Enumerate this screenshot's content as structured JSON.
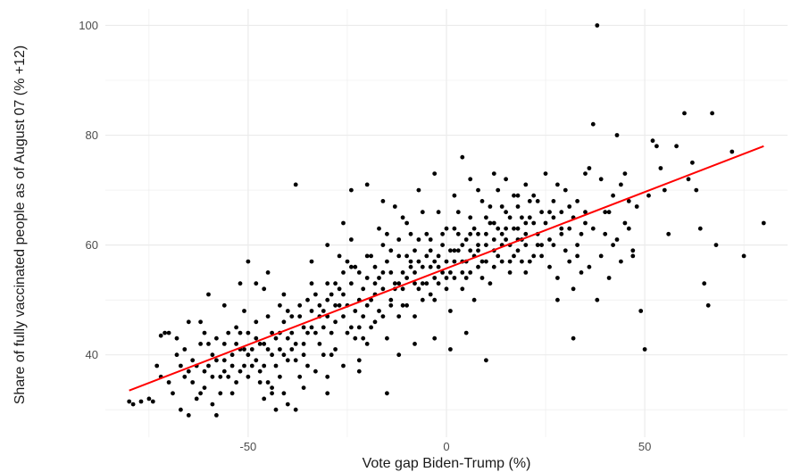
{
  "chart_data": {
    "type": "scatter",
    "title": "",
    "xlabel": "Vote gap Biden-Trump (%)",
    "ylabel": "Share of fully vaccinated people as of August 07 (% +12)",
    "xlim": [
      -86,
      86
    ],
    "ylim": [
      25,
      103
    ],
    "x_ticks": [
      -50,
      0,
      50
    ],
    "x_tick_labels": [
      "-50",
      "0",
      "50"
    ],
    "y_ticks": [
      40,
      60,
      80,
      100
    ],
    "y_tick_labels": [
      "40",
      "60",
      "80",
      "100"
    ],
    "grid": true,
    "legend": "none",
    "colors": {
      "points": "#000000",
      "trend": "#ff0000",
      "grid": "#ebebeb"
    },
    "trend_line": {
      "x": [
        -80,
        80
      ],
      "y": [
        33.5,
        78
      ]
    },
    "points": [
      [
        -80,
        31.5
      ],
      [
        -77,
        31.5
      ],
      [
        -74,
        31.5
      ],
      [
        -72,
        43.5
      ],
      [
        -71,
        44
      ],
      [
        -70,
        44
      ],
      [
        -68,
        43
      ],
      [
        -69,
        33
      ],
      [
        -66,
        36
      ],
      [
        -67,
        30
      ],
      [
        -64,
        35
      ],
      [
        -65,
        37
      ],
      [
        -63,
        38
      ],
      [
        -62,
        42
      ],
      [
        -61,
        44
      ],
      [
        -60,
        42
      ],
      [
        -59,
        40
      ],
      [
        -61,
        34
      ],
      [
        -59,
        31
      ],
      [
        -58,
        29
      ],
      [
        -57,
        33
      ],
      [
        -56,
        37
      ],
      [
        -55,
        36
      ],
      [
        -54,
        40
      ],
      [
        -53,
        42
      ],
      [
        -52,
        44
      ],
      [
        -51,
        38
      ],
      [
        -50,
        36
      ],
      [
        -50,
        40
      ],
      [
        -49,
        41
      ],
      [
        -48,
        39
      ],
      [
        -47,
        37
      ],
      [
        -46,
        42
      ],
      [
        -45,
        35
      ],
      [
        -44,
        34
      ],
      [
        -43,
        38
      ],
      [
        -42,
        44
      ],
      [
        -41,
        46
      ],
      [
        -40,
        43
      ],
      [
        -39,
        41
      ],
      [
        -38,
        39
      ],
      [
        -37,
        36
      ],
      [
        -36,
        45
      ],
      [
        -35,
        50
      ],
      [
        -34,
        48
      ],
      [
        -33,
        44
      ],
      [
        -32,
        42
      ],
      [
        -31,
        40
      ],
      [
        -30,
        47
      ],
      [
        -29,
        51
      ],
      [
        -28,
        53
      ],
      [
        -27,
        49
      ],
      [
        -26,
        55
      ],
      [
        -25,
        57
      ],
      [
        -24,
        45
      ],
      [
        -23,
        43
      ],
      [
        -22,
        50
      ],
      [
        -21,
        52
      ],
      [
        -20,
        54
      ],
      [
        -19,
        58
      ],
      [
        -18,
        56
      ],
      [
        -17,
        48
      ],
      [
        -16,
        60
      ],
      [
        -15,
        62
      ],
      [
        -14,
        59
      ],
      [
        -13,
        52
      ],
      [
        -12,
        47
      ],
      [
        -11,
        55
      ],
      [
        -10,
        64
      ],
      [
        -9,
        57
      ],
      [
        -8,
        53
      ],
      [
        -7,
        61
      ],
      [
        -6,
        50
      ],
      [
        -5,
        58
      ],
      [
        -4,
        56
      ],
      [
        -3,
        54
      ],
      [
        -2,
        66
      ],
      [
        -1,
        60
      ],
      [
        0,
        57
      ],
      [
        1,
        55
      ],
      [
        2,
        63
      ],
      [
        3,
        59
      ],
      [
        4,
        52
      ],
      [
        5,
        61
      ],
      [
        6,
        65
      ],
      [
        7,
        58
      ],
      [
        8,
        56
      ],
      [
        9,
        68
      ],
      [
        10,
        62
      ],
      [
        11,
        64
      ],
      [
        12,
        59
      ],
      [
        13,
        70
      ],
      [
        14,
        60
      ],
      [
        15,
        66
      ],
      [
        16,
        57
      ],
      [
        17,
        63
      ],
      [
        18,
        67
      ],
      [
        19,
        61
      ],
      [
        20,
        55
      ],
      [
        21,
        65
      ],
      [
        22,
        69
      ],
      [
        23,
        62
      ],
      [
        24,
        58
      ],
      [
        25,
        64
      ],
      [
        26,
        66
      ],
      [
        27,
        60
      ],
      [
        28,
        71
      ],
      [
        29,
        63
      ],
      [
        30,
        59
      ],
      [
        31,
        67
      ],
      [
        32,
        52
      ],
      [
        33,
        68
      ],
      [
        34,
        62
      ],
      [
        35,
        66
      ],
      [
        36,
        74
      ],
      [
        37,
        82
      ],
      [
        38,
        100
      ],
      [
        39,
        72
      ],
      [
        40,
        62
      ],
      [
        41,
        66
      ],
      [
        42,
        69
      ],
      [
        43,
        80
      ],
      [
        44,
        71
      ],
      [
        45,
        64
      ],
      [
        46,
        68
      ],
      [
        47,
        58
      ],
      [
        48,
        67
      ],
      [
        49,
        48
      ],
      [
        50,
        41
      ],
      [
        51,
        69
      ],
      [
        52,
        79
      ],
      [
        53,
        78
      ],
      [
        54,
        74
      ],
      [
        55,
        70
      ],
      [
        56,
        62
      ],
      [
        58,
        78
      ],
      [
        60,
        84
      ],
      [
        61,
        72
      ],
      [
        62,
        75
      ],
      [
        63,
        70
      ],
      [
        64,
        63
      ],
      [
        65,
        53
      ],
      [
        66,
        49
      ],
      [
        67,
        84
      ],
      [
        68,
        60
      ],
      [
        72,
        77
      ],
      [
        75,
        58
      ],
      [
        80,
        64
      ],
      [
        -79,
        31
      ],
      [
        -75,
        32
      ],
      [
        -73,
        38
      ],
      [
        -70,
        35
      ],
      [
        -68,
        40
      ],
      [
        -66,
        41
      ],
      [
        -65,
        29
      ],
      [
        -63,
        32
      ],
      [
        -62,
        46
      ],
      [
        -60,
        38
      ],
      [
        -58,
        43
      ],
      [
        -57,
        36
      ],
      [
        -55,
        44
      ],
      [
        -54,
        33
      ],
      [
        -52,
        37
      ],
      [
        -51,
        48
      ],
      [
        -50,
        57
      ],
      [
        -48,
        43
      ],
      [
        -47,
        35
      ],
      [
        -46,
        32
      ],
      [
        -45,
        47
      ],
      [
        -44,
        40
      ],
      [
        -43,
        30
      ],
      [
        -42,
        36
      ],
      [
        -41,
        51
      ],
      [
        -40,
        48
      ],
      [
        -39,
        44
      ],
      [
        -38,
        30
      ],
      [
        -37,
        47
      ],
      [
        -36,
        42
      ],
      [
        -35,
        38
      ],
      [
        -34,
        53
      ],
      [
        -33,
        37
      ],
      [
        -32,
        49
      ],
      [
        -31,
        45
      ],
      [
        -30,
        36
      ],
      [
        -29,
        44
      ],
      [
        -28,
        41
      ],
      [
        -27,
        58
      ],
      [
        -26,
        47
      ],
      [
        -25,
        44
      ],
      [
        -24,
        61
      ],
      [
        -23,
        56
      ],
      [
        -22,
        39
      ],
      [
        -21,
        47
      ],
      [
        -20,
        42
      ],
      [
        -19,
        50
      ],
      [
        -18,
        46
      ],
      [
        -17,
        63
      ],
      [
        -16,
        52
      ],
      [
        -15,
        43
      ],
      [
        -14,
        55
      ],
      [
        -13,
        67
      ],
      [
        -12,
        58
      ],
      [
        -11,
        49
      ],
      [
        -10,
        54
      ],
      [
        -9,
        62
      ],
      [
        -8,
        47
      ],
      [
        -7,
        57
      ],
      [
        -6,
        66
      ],
      [
        -5,
        53
      ],
      [
        -4,
        61
      ],
      [
        -3,
        50
      ],
      [
        -2,
        58
      ],
      [
        -1,
        55
      ],
      [
        0,
        63
      ],
      [
        1,
        48
      ],
      [
        2,
        59
      ],
      [
        3,
        66
      ],
      [
        4,
        57
      ],
      [
        5,
        54
      ],
      [
        6,
        62
      ],
      [
        7,
        50
      ],
      [
        8,
        60
      ],
      [
        9,
        57
      ],
      [
        10,
        65
      ],
      [
        11,
        53
      ],
      [
        12,
        61
      ],
      [
        13,
        58
      ],
      [
        14,
        67
      ],
      [
        15,
        63
      ],
      [
        16,
        55
      ],
      [
        17,
        69
      ],
      [
        18,
        59
      ],
      [
        19,
        65
      ],
      [
        20,
        62
      ],
      [
        21,
        57
      ],
      [
        22,
        64
      ],
      [
        23,
        68
      ],
      [
        24,
        60
      ],
      [
        25,
        73
      ],
      [
        26,
        56
      ],
      [
        27,
        65
      ],
      [
        28,
        54
      ],
      [
        29,
        62
      ],
      [
        30,
        70
      ],
      [
        31,
        57
      ],
      [
        32,
        65
      ],
      [
        33,
        60
      ],
      [
        34,
        55
      ],
      [
        35,
        73
      ],
      [
        36,
        56
      ],
      [
        37,
        63
      ],
      [
        38,
        50
      ],
      [
        39,
        58
      ],
      [
        40,
        66
      ],
      [
        41,
        54
      ],
      [
        42,
        60
      ],
      [
        43,
        61
      ],
      [
        44,
        57
      ],
      [
        45,
        73
      ],
      [
        46,
        63
      ],
      [
        47,
        59
      ],
      [
        -62,
        33
      ],
      [
        -59,
        36
      ],
      [
        -56,
        39
      ],
      [
        -53,
        35
      ],
      [
        -51,
        41
      ],
      [
        -49,
        38
      ],
      [
        -47,
        42
      ],
      [
        -46,
        38
      ],
      [
        -44,
        44
      ],
      [
        -42,
        41
      ],
      [
        -41,
        33
      ],
      [
        -40,
        39
      ],
      [
        -38,
        42
      ],
      [
        -37,
        49
      ],
      [
        -35,
        44
      ],
      [
        -33,
        51
      ],
      [
        -31,
        48
      ],
      [
        -30,
        53
      ],
      [
        -29,
        40
      ],
      [
        -28,
        46
      ],
      [
        -27,
        52
      ],
      [
        -25,
        49
      ],
      [
        -24,
        53
      ],
      [
        -23,
        48
      ],
      [
        -22,
        55
      ],
      [
        -21,
        43
      ],
      [
        -20,
        58
      ],
      [
        -19,
        45
      ],
      [
        -18,
        51
      ],
      [
        -17,
        54
      ],
      [
        -16,
        47
      ],
      [
        -15,
        57
      ],
      [
        -14,
        50
      ],
      [
        -13,
        53
      ],
      [
        -12,
        61
      ],
      [
        -11,
        52
      ],
      [
        -10,
        49
      ],
      [
        -9,
        56
      ],
      [
        -8,
        59
      ],
      [
        -7,
        52
      ],
      [
        -6,
        56
      ],
      [
        -5,
        62
      ],
      [
        -4,
        51
      ],
      [
        -3,
        57
      ],
      [
        -2,
        53
      ],
      [
        -1,
        62
      ],
      [
        0,
        52
      ],
      [
        1,
        59
      ],
      [
        2,
        54
      ],
      [
        3,
        62
      ],
      [
        4,
        60
      ],
      [
        5,
        57
      ],
      [
        6,
        55
      ],
      [
        7,
        63
      ],
      [
        8,
        59
      ],
      [
        9,
        54
      ],
      [
        10,
        60
      ],
      [
        11,
        67
      ],
      [
        12,
        56
      ],
      [
        13,
        63
      ],
      [
        14,
        57
      ],
      [
        15,
        61
      ],
      [
        16,
        65
      ],
      [
        17,
        58
      ],
      [
        18,
        63
      ],
      [
        19,
        57
      ],
      [
        20,
        60
      ],
      [
        21,
        68
      ],
      [
        22,
        58
      ],
      [
        23,
        60
      ],
      [
        24,
        66
      ],
      [
        26,
        61
      ],
      [
        27,
        68
      ],
      [
        29,
        66
      ],
      [
        31,
        63
      ],
      [
        33,
        58
      ],
      [
        35,
        64
      ],
      [
        -72,
        36
      ],
      [
        -67,
        38
      ],
      [
        -64,
        39
      ],
      [
        -61,
        37
      ],
      [
        -58,
        39
      ],
      [
        -56,
        42
      ],
      [
        -54,
        38
      ],
      [
        -52,
        41
      ],
      [
        -50,
        44
      ],
      [
        -48,
        46
      ],
      [
        -45,
        41
      ],
      [
        -43,
        43
      ],
      [
        -41,
        40
      ],
      [
        -39,
        47
      ],
      [
        -36,
        40
      ],
      [
        -34,
        45
      ],
      [
        -32,
        47
      ],
      [
        -30,
        50
      ],
      [
        -28,
        49
      ],
      [
        -26,
        51
      ],
      [
        -24,
        56
      ],
      [
        -22,
        45
      ],
      [
        -20,
        49
      ],
      [
        -18,
        53
      ],
      [
        -16,
        55
      ],
      [
        -14,
        49
      ],
      [
        -12,
        53
      ],
      [
        -10,
        58
      ],
      [
        -8,
        55
      ],
      [
        -6,
        53
      ],
      [
        -4,
        59
      ],
      [
        -2,
        56
      ],
      [
        0,
        54
      ],
      [
        2,
        57
      ],
      [
        4,
        55
      ],
      [
        6,
        59
      ],
      [
        8,
        62
      ],
      [
        10,
        57
      ],
      [
        12,
        64
      ],
      [
        14,
        62
      ],
      [
        16,
        60
      ],
      [
        18,
        61
      ],
      [
        20,
        64
      ],
      [
        -44,
        33
      ],
      [
        -40,
        31
      ],
      [
        -36,
        34
      ],
      [
        -30,
        33
      ],
      [
        -26,
        38
      ],
      [
        -22,
        37
      ],
      [
        -15,
        33
      ],
      [
        -12,
        40
      ],
      [
        -8,
        42
      ],
      [
        -3,
        43
      ],
      [
        1,
        41
      ],
      [
        5,
        44
      ],
      [
        10,
        39
      ],
      [
        28,
        50
      ],
      [
        32,
        43
      ],
      [
        -20,
        71
      ],
      [
        -16,
        68
      ],
      [
        -11,
        65
      ],
      [
        -7,
        70
      ],
      [
        -3,
        73
      ],
      [
        2,
        69
      ],
      [
        4,
        76
      ],
      [
        6,
        72
      ],
      [
        8,
        70
      ],
      [
        12,
        73
      ],
      [
        15,
        72
      ],
      [
        18,
        69
      ],
      [
        20,
        71
      ],
      [
        -38,
        71
      ],
      [
        -24,
        70
      ],
      [
        -26,
        64
      ],
      [
        -30,
        60
      ],
      [
        -45,
        55
      ],
      [
        -48,
        53
      ],
      [
        -56,
        49
      ],
      [
        -60,
        51
      ],
      [
        -65,
        46
      ],
      [
        -53,
        45
      ],
      [
        -52,
        53
      ],
      [
        -46,
        52
      ],
      [
        -42,
        49
      ],
      [
        -34,
        57
      ]
    ]
  }
}
